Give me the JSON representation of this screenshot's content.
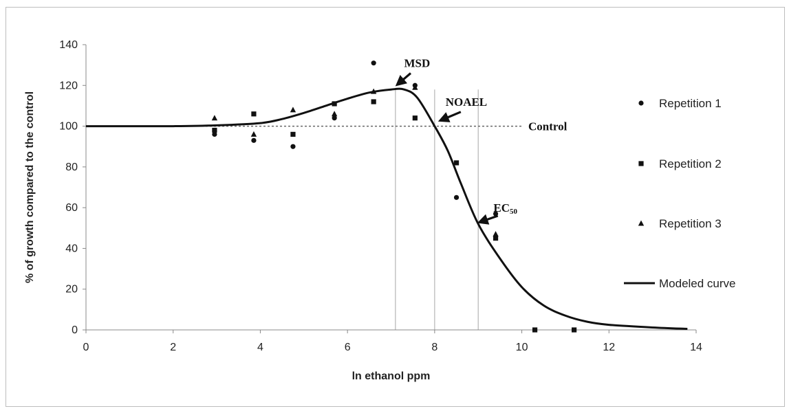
{
  "chart_data": {
    "type": "scatter",
    "xlabel": "ln ethanol ppm",
    "ylabel": "% of growth compared to the control",
    "xlim": [
      0,
      14
    ],
    "ylim": [
      0,
      140
    ],
    "xticks": [
      0,
      2,
      4,
      6,
      8,
      10,
      12,
      14
    ],
    "yticks": [
      0,
      20,
      40,
      60,
      80,
      100,
      120,
      140
    ],
    "grid": false,
    "legend_position": "right",
    "control_label": "Control",
    "control_value": 100,
    "series": [
      {
        "name": "Repetition 1",
        "marker": "circle",
        "points": [
          [
            2.95,
            96
          ],
          [
            3.85,
            93
          ],
          [
            4.75,
            90
          ],
          [
            5.7,
            104
          ],
          [
            6.6,
            131
          ],
          [
            7.55,
            120
          ],
          [
            8.5,
            65
          ],
          [
            9.4,
            57
          ]
        ]
      },
      {
        "name": "Repetition 2",
        "marker": "square",
        "points": [
          [
            2.95,
            98
          ],
          [
            3.85,
            106
          ],
          [
            4.75,
            96
          ],
          [
            5.7,
            111
          ],
          [
            6.6,
            112
          ],
          [
            7.55,
            104
          ],
          [
            8.5,
            82
          ],
          [
            9.4,
            45
          ],
          [
            10.3,
            0
          ],
          [
            11.2,
            0
          ]
        ]
      },
      {
        "name": "Repetition 3",
        "marker": "triangle",
        "points": [
          [
            2.95,
            104
          ],
          [
            3.85,
            96
          ],
          [
            4.75,
            108
          ],
          [
            5.7,
            106
          ],
          [
            6.6,
            117
          ],
          [
            7.55,
            119
          ],
          [
            9.4,
            47
          ]
        ]
      },
      {
        "name": "Modeled curve",
        "marker": "line",
        "points": [
          [
            0,
            100
          ],
          [
            2,
            100
          ],
          [
            3,
            100.4
          ],
          [
            4,
            101.5
          ],
          [
            4.5,
            103.5
          ],
          [
            5,
            106.5
          ],
          [
            5.5,
            110
          ],
          [
            6,
            113.5
          ],
          [
            6.5,
            116.5
          ],
          [
            7,
            118
          ],
          [
            7.3,
            118
          ],
          [
            7.6,
            114
          ],
          [
            8,
            100
          ],
          [
            8.3,
            88
          ],
          [
            8.6,
            72
          ],
          [
            9,
            52
          ],
          [
            9.5,
            35
          ],
          [
            10,
            21
          ],
          [
            10.5,
            12
          ],
          [
            11,
            7
          ],
          [
            11.5,
            4
          ],
          [
            12,
            2.5
          ],
          [
            13,
            1.2
          ],
          [
            13.8,
            0.5
          ]
        ]
      }
    ],
    "reference_lines_x": [
      7.1,
      8.0,
      9.0
    ],
    "annotations": [
      {
        "label": "MSD",
        "subscript": "",
        "target": [
          7.1,
          120
        ],
        "text_pos": [
          7.3,
          129
        ],
        "arrow_from": [
          7.45,
          126
        ]
      },
      {
        "label": "NOAEL",
        "subscript": "",
        "target": [
          8.1,
          102
        ],
        "text_pos": [
          8.25,
          110
        ],
        "arrow_from": [
          8.6,
          107
        ]
      },
      {
        "label": "EC",
        "subscript": "50",
        "target": [
          9.0,
          52
        ],
        "text_pos": [
          9.35,
          58
        ],
        "arrow_from": [
          9.45,
          56
        ]
      }
    ]
  }
}
